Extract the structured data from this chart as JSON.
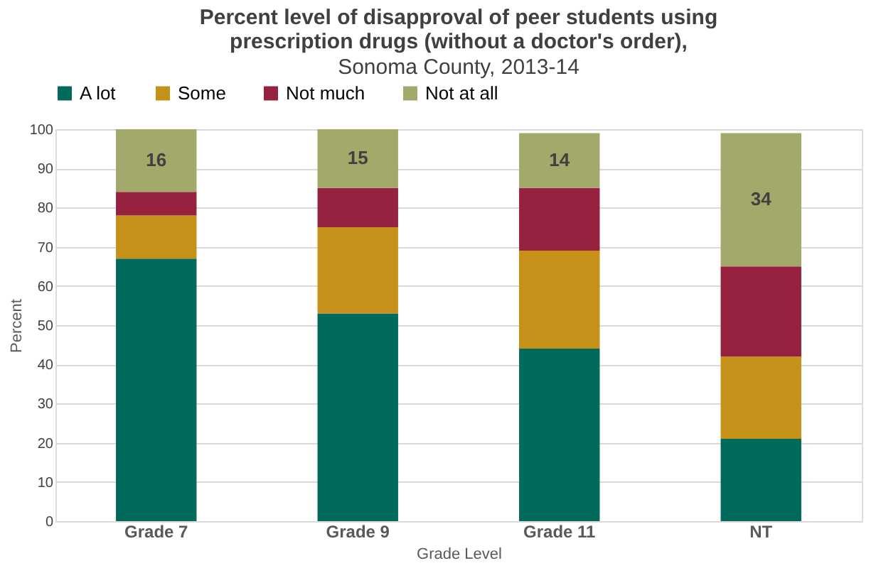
{
  "chart_data": {
    "type": "bar",
    "stacked": true,
    "title": "Percent level of disapproval of peer students using prescription drugs (without a doctor's order),",
    "subtitle": "Sonoma County, 2013-14",
    "xlabel": "Grade Level",
    "ylabel": "Percent",
    "categories": [
      "Grade 7",
      "Grade 9",
      "Grade 11",
      "NT"
    ],
    "series": [
      {
        "name": "A lot",
        "color": "#006a5b",
        "values": [
          67,
          53,
          44,
          21
        ]
      },
      {
        "name": "Some",
        "color": "#c59118",
        "values": [
          11,
          22,
          25,
          21
        ]
      },
      {
        "name": "Not much",
        "color": "#97223f",
        "values": [
          6,
          10,
          16,
          23
        ]
      },
      {
        "name": "Not at all",
        "color": "#a3a96b",
        "values": [
          16,
          15,
          14,
          34
        ],
        "value_labels": [
          "16",
          "15",
          "14",
          "34"
        ]
      }
    ],
    "ylim": [
      0,
      100
    ],
    "yticks": [
      0,
      10,
      20,
      30,
      40,
      50,
      60,
      70,
      80,
      90,
      100
    ],
    "grid": "y",
    "legend": "top"
  }
}
